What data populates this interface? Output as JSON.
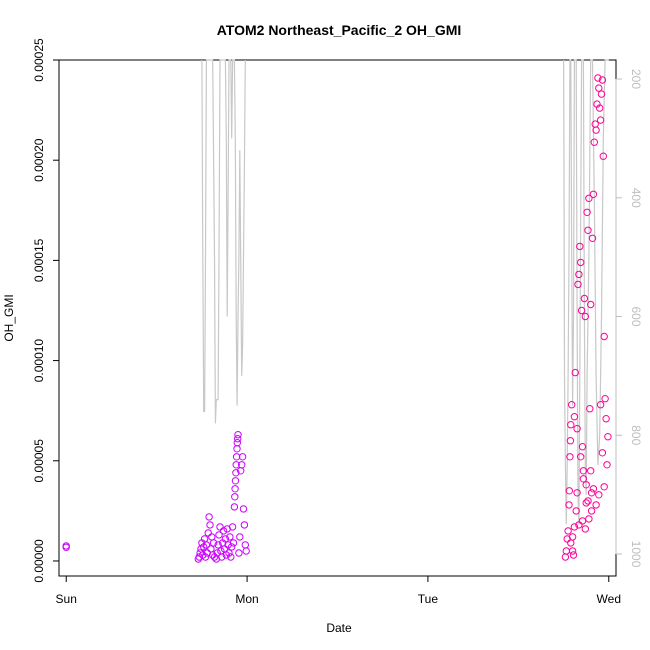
{
  "chart_data": {
    "type": "scatter",
    "title": "ATOM2 Northeast_Pacific_2 OH_GMI",
    "xlabel": "Date",
    "ylabel": "OH_GMI",
    "x_unit": "days from Sun 00:00",
    "xlim": [
      -0.04,
      3.04
    ],
    "ylim": [
      -7.5e-06,
      0.00025
    ],
    "x_ticks": [
      {
        "value": 0,
        "label": "Sun"
      },
      {
        "value": 1,
        "label": "Mon"
      },
      {
        "value": 2,
        "label": "Tue"
      },
      {
        "value": 3,
        "label": "Wed"
      }
    ],
    "y_ticks": [
      {
        "value": 0,
        "label": "0.00000"
      },
      {
        "value": 5e-05,
        "label": "0.00005"
      },
      {
        "value": 0.0001,
        "label": "0.00010"
      },
      {
        "value": 0.00015,
        "label": "0.00015"
      },
      {
        "value": 0.0002,
        "label": "0.00020"
      },
      {
        "value": 0.00025,
        "label": "0.00025"
      }
    ],
    "y2_lim_reversed": [
      1037,
      168
    ],
    "y2_ticks": [
      {
        "value": 200,
        "label": "200"
      },
      {
        "value": 400,
        "label": "400"
      },
      {
        "value": 600,
        "label": "600"
      },
      {
        "value": 800,
        "label": "800"
      },
      {
        "value": 1000,
        "label": "1000"
      }
    ],
    "grid": false,
    "colors": {
      "pressure_line": "#c8c8c8",
      "right_axis": "#bebebe",
      "points_mon": "#cc00ff",
      "points_wed": "#ff0099"
    },
    "series": [
      {
        "kind": "points",
        "color": "#cc00ff",
        "points": [
          [
            0.0,
            7.5e-06
          ],
          [
            0.0,
            6.8e-06
          ],
          [
            0.73,
            1e-06
          ],
          [
            0.735,
            2e-06
          ],
          [
            0.74,
            4e-06
          ],
          [
            0.745,
            6e-06
          ],
          [
            0.75,
            9e-06
          ],
          [
            0.755,
            3e-06
          ],
          [
            0.76,
            7e-06
          ],
          [
            0.765,
            1.1e-05
          ],
          [
            0.77,
            2e-06
          ],
          [
            0.775,
            8e-06
          ],
          [
            0.78,
            4e-06
          ],
          [
            0.785,
            1.4e-05
          ],
          [
            0.79,
            2.2e-05
          ],
          [
            0.795,
            1.8e-05
          ],
          [
            0.8,
            6e-06
          ],
          [
            0.805,
            1.2e-05
          ],
          [
            0.81,
            3e-06
          ],
          [
            0.815,
            9e-06
          ],
          [
            0.82,
            2e-06
          ],
          [
            0.83,
            1e-06
          ],
          [
            0.835,
            4e-06
          ],
          [
            0.84,
            8e-06
          ],
          [
            0.845,
            1.3e-05
          ],
          [
            0.85,
            1.7e-05
          ],
          [
            0.855,
            5e-06
          ],
          [
            0.86,
            2e-06
          ],
          [
            0.865,
            9e-06
          ],
          [
            0.87,
            1.5e-05
          ],
          [
            0.875,
            6e-06
          ],
          [
            0.88,
            1.1e-05
          ],
          [
            0.885,
            3e-06
          ],
          [
            0.89,
            1.6e-05
          ],
          [
            0.895,
            8e-06
          ],
          [
            0.9,
            4e-06
          ],
          [
            0.905,
            1.2e-05
          ],
          [
            0.91,
            2e-06
          ],
          [
            0.915,
            7e-06
          ],
          [
            0.92,
            1.7e-05
          ],
          [
            0.925,
            9e-06
          ],
          [
            0.93,
            2.7e-05
          ],
          [
            0.932,
            3.2e-05
          ],
          [
            0.934,
            3.6e-05
          ],
          [
            0.936,
            4e-05
          ],
          [
            0.938,
            4.4e-05
          ],
          [
            0.94,
            4.8e-05
          ],
          [
            0.942,
            5.2e-05
          ],
          [
            0.944,
            5.6e-05
          ],
          [
            0.946,
            5.9e-05
          ],
          [
            0.948,
            6.1e-05
          ],
          [
            0.95,
            6.3e-05
          ],
          [
            0.955,
            4e-06
          ],
          [
            0.96,
            1.2e-05
          ],
          [
            0.965,
            4.5e-05
          ],
          [
            0.97,
            4.8e-05
          ],
          [
            0.975,
            5.2e-05
          ],
          [
            0.98,
            2.6e-05
          ],
          [
            0.985,
            1.8e-05
          ],
          [
            0.99,
            8e-06
          ],
          [
            0.995,
            5e-06
          ]
        ]
      },
      {
        "kind": "points",
        "color": "#ff0099",
        "points": [
          [
            2.76,
            2e-06
          ],
          [
            2.765,
            5e-06
          ],
          [
            2.77,
            1.1e-05
          ],
          [
            2.775,
            1.5e-05
          ],
          [
            2.78,
            2.8e-05
          ],
          [
            2.782,
            3.5e-05
          ],
          [
            2.785,
            5.2e-05
          ],
          [
            2.788,
            6e-05
          ],
          [
            2.79,
            6.8e-05
          ],
          [
            2.795,
            7.8e-05
          ],
          [
            2.8,
            1.2e-05
          ],
          [
            2.805,
            3e-06
          ],
          [
            2.81,
            1.7e-05
          ],
          [
            2.815,
            9.4e-05
          ],
          [
            2.82,
            2.5e-05
          ],
          [
            2.825,
            3.4e-05
          ],
          [
            2.83,
            0.000138
          ],
          [
            2.835,
            0.000143
          ],
          [
            2.84,
            0.000157
          ],
          [
            2.845,
            0.000149
          ],
          [
            2.85,
            0.000125
          ],
          [
            2.855,
            5.7e-05
          ],
          [
            2.86,
            4.5e-05
          ],
          [
            2.865,
            0.000131
          ],
          [
            2.87,
            0.000122
          ],
          [
            2.875,
            3.8e-05
          ],
          [
            2.88,
            0.000174
          ],
          [
            2.885,
            0.000165
          ],
          [
            2.89,
            0.000181
          ],
          [
            2.895,
            7.6e-05
          ],
          [
            2.9,
            0.000128
          ],
          [
            2.905,
            3.4e-05
          ],
          [
            2.91,
            0.000161
          ],
          [
            2.915,
            0.000183
          ],
          [
            2.92,
            0.000209
          ],
          [
            2.925,
            0.000218
          ],
          [
            2.93,
            0.000215
          ],
          [
            2.935,
            0.000228
          ],
          [
            2.94,
            0.000241
          ],
          [
            2.945,
            0.000236
          ],
          [
            2.95,
            0.000226
          ],
          [
            2.955,
            0.00022
          ],
          [
            2.96,
            0.000233
          ],
          [
            2.965,
            0.00024
          ],
          [
            2.97,
            0.000202
          ],
          [
            2.975,
            0.000112
          ],
          [
            2.98,
            8.1e-05
          ],
          [
            2.985,
            7.1e-05
          ],
          [
            2.99,
            4.8e-05
          ],
          [
            2.995,
            6.2e-05
          ],
          [
            2.81,
            7.2e-05
          ],
          [
            2.825,
            6.6e-05
          ],
          [
            2.845,
            5.2e-05
          ],
          [
            2.86,
            4.1e-05
          ],
          [
            2.875,
            2.9e-05
          ],
          [
            2.89,
            2.1e-05
          ],
          [
            2.9,
            4.5e-05
          ],
          [
            2.915,
            3.6e-05
          ],
          [
            2.93,
            2.8e-05
          ],
          [
            2.945,
            3.3e-05
          ],
          [
            2.955,
            7.8e-05
          ],
          [
            2.965,
            5.4e-05
          ],
          [
            2.975,
            3.7e-05
          ],
          [
            2.8,
            5e-06
          ],
          [
            2.79,
            9e-06
          ],
          [
            2.835,
            1.8e-05
          ],
          [
            2.855,
            2e-05
          ],
          [
            2.87,
            1.6e-05
          ],
          [
            2.885,
            3e-05
          ],
          [
            2.905,
            2.5e-05
          ]
        ]
      }
    ],
    "pressure_line": [
      [
        0.75,
        168
      ],
      [
        0.755,
        500
      ],
      [
        0.76,
        760
      ],
      [
        0.765,
        760
      ],
      [
        0.77,
        500
      ],
      [
        0.775,
        168
      ],
      [
        0.8,
        168
      ],
      [
        0.81,
        168
      ],
      [
        0.82,
        500
      ],
      [
        0.825,
        780
      ],
      [
        0.83,
        740
      ],
      [
        0.84,
        740
      ],
      [
        0.845,
        500
      ],
      [
        0.85,
        168
      ],
      [
        0.88,
        168
      ],
      [
        0.885,
        300
      ],
      [
        0.89,
        600
      ],
      [
        0.895,
        400
      ],
      [
        0.9,
        168
      ],
      [
        0.91,
        168
      ],
      [
        0.915,
        300
      ],
      [
        0.92,
        168
      ],
      [
        0.93,
        168
      ],
      [
        0.935,
        300
      ],
      [
        0.94,
        600
      ],
      [
        0.945,
        750
      ],
      [
        0.95,
        600
      ],
      [
        0.955,
        500
      ],
      [
        0.96,
        320
      ],
      [
        0.965,
        500
      ],
      [
        0.97,
        700
      ],
      [
        0.975,
        650
      ],
      [
        0.98,
        500
      ],
      [
        0.985,
        350
      ],
      [
        0.99,
        168
      ],
      [
        2.75,
        168
      ],
      [
        2.752,
        300
      ],
      [
        2.755,
        700
      ],
      [
        2.76,
        850
      ],
      [
        2.765,
        950
      ],
      [
        2.77,
        850
      ],
      [
        2.775,
        700
      ],
      [
        2.78,
        500
      ],
      [
        2.785,
        168
      ],
      [
        2.79,
        168
      ],
      [
        2.795,
        500
      ],
      [
        2.8,
        750
      ],
      [
        2.805,
        600
      ],
      [
        2.81,
        168
      ],
      [
        2.82,
        168
      ],
      [
        2.825,
        600
      ],
      [
        2.83,
        900
      ],
      [
        2.835,
        950
      ],
      [
        2.84,
        700
      ],
      [
        2.85,
        168
      ],
      [
        2.86,
        168
      ],
      [
        2.865,
        600
      ],
      [
        2.87,
        850
      ],
      [
        2.875,
        900
      ],
      [
        2.88,
        700
      ],
      [
        2.89,
        500
      ],
      [
        2.9,
        168
      ],
      [
        2.91,
        168
      ],
      [
        2.92,
        400
      ],
      [
        2.93,
        700
      ],
      [
        2.94,
        850
      ],
      [
        2.95,
        800
      ],
      [
        2.96,
        600
      ],
      [
        2.97,
        300
      ],
      [
        2.98,
        168
      ],
      [
        2.99,
        168
      ],
      [
        3.0,
        168
      ]
    ]
  }
}
